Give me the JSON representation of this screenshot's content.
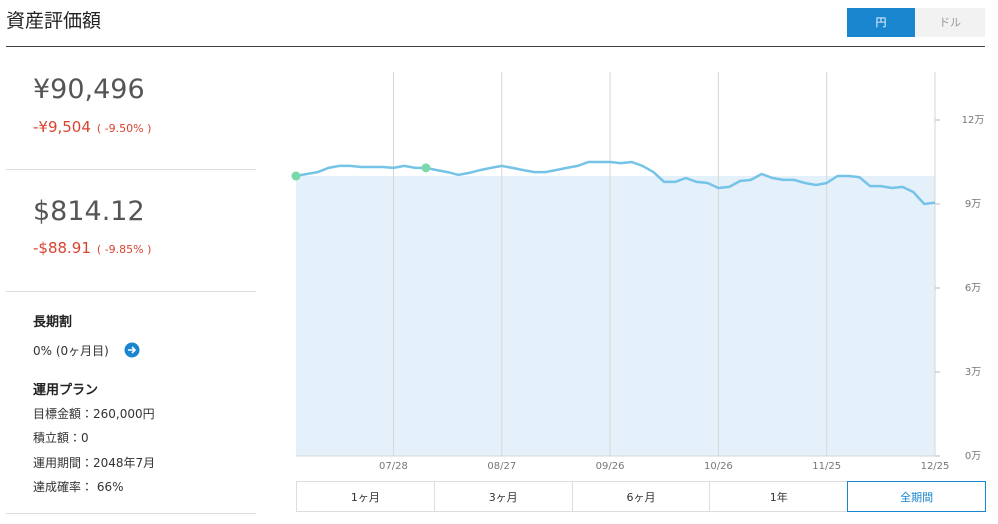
{
  "header": {
    "title": "資産評価額",
    "currency_toggle": [
      {
        "label": "円",
        "active": true
      },
      {
        "label": "ドル",
        "active": false
      }
    ]
  },
  "summary": {
    "yen": {
      "value": "¥90,496",
      "change": "-¥9,504",
      "change_pct": "( -9.50% )"
    },
    "usd": {
      "value": "$814.12",
      "change": "-$88.91",
      "change_pct": "( -9.85% )"
    }
  },
  "plan": {
    "discount_title": "長期割",
    "discount_text": "0% (0ヶ月目)",
    "plan_title": "運用プラン",
    "items": [
      "目標金額：260,000円",
      "積立額：0",
      "運用期間：2048年7月",
      "達成確率： 66%"
    ]
  },
  "chart_data": {
    "type": "line",
    "categories": [
      null,
      null,
      null,
      null,
      null,
      null,
      null,
      null,
      null,
      "07/28",
      null,
      null,
      null,
      null,
      null,
      null,
      null,
      null,
      null,
      "08/27",
      null,
      null,
      null,
      null,
      null,
      null,
      null,
      null,
      null,
      "09/26",
      null,
      null,
      null,
      null,
      null,
      null,
      null,
      null,
      null,
      "10/26",
      null,
      null,
      null,
      null,
      null,
      null,
      null,
      null,
      null,
      "11/25",
      null,
      null,
      null,
      null,
      null,
      null,
      null,
      null,
      null,
      "12/25"
    ],
    "values": [
      100000,
      100700,
      101400,
      102900,
      103600,
      103600,
      103200,
      103200,
      103200,
      102900,
      103600,
      102900,
      102900,
      102100,
      101400,
      100400,
      101100,
      102100,
      102900,
      103600,
      102900,
      102100,
      101400,
      101400,
      102100,
      102900,
      103600,
      105000,
      105000,
      105000,
      104600,
      105000,
      103600,
      101400,
      97900,
      97900,
      99300,
      97900,
      97500,
      95700,
      96100,
      98200,
      98600,
      100700,
      99300,
      98600,
      98600,
      97500,
      96800,
      97500,
      100000,
      100000,
      99600,
      96400,
      96400,
      95700,
      96100,
      94300,
      90000,
      90496
    ],
    "color": "#76c3e8",
    "principal": 100000,
    "principal_color": "#e4f1fa",
    "markers": [
      0,
      12
    ],
    "marker_color": "#79d9a8",
    "ylim": [
      0,
      137143
    ],
    "yticks": [
      {
        "value": 0,
        "label": "0万"
      },
      {
        "value": 30000,
        "label": "3万"
      },
      {
        "value": 60000,
        "label": "6万"
      },
      {
        "value": 90000,
        "label": "9万"
      },
      {
        "value": 120000,
        "label": "12万"
      }
    ],
    "grid": true
  },
  "period_buttons": [
    {
      "label": "1ヶ月",
      "active": false
    },
    {
      "label": "3ヶ月",
      "active": false
    },
    {
      "label": "6ヶ月",
      "active": false
    },
    {
      "label": "1年",
      "active": false
    },
    {
      "label": "全期間",
      "active": true
    }
  ]
}
